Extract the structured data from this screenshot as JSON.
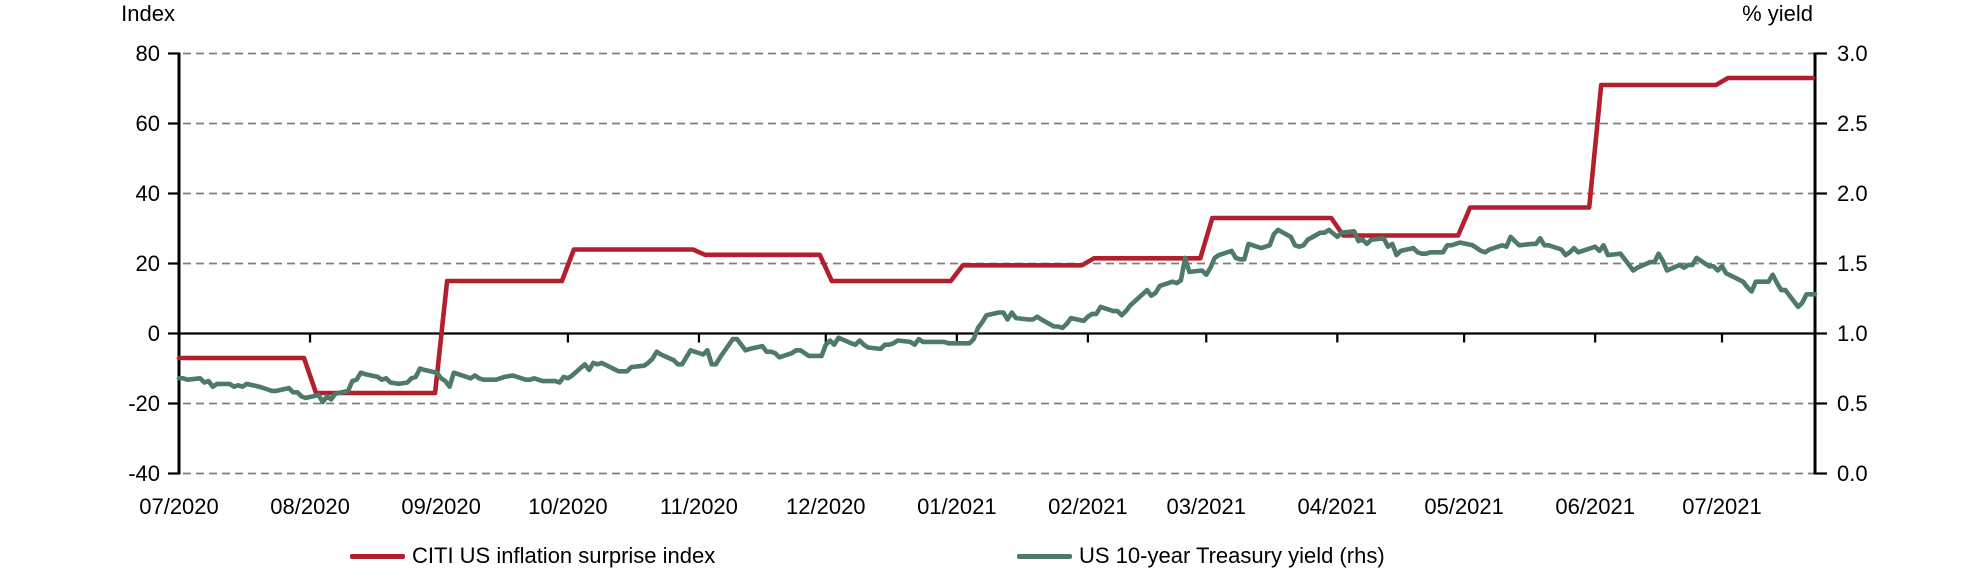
{
  "left_axis": {
    "title": "Index",
    "tick_labels": [
      "80",
      "60",
      "40",
      "20",
      "0",
      "-20",
      "-40"
    ],
    "tick_values": [
      80,
      60,
      40,
      20,
      0,
      -20,
      -40
    ]
  },
  "right_axis": {
    "title": "% yield",
    "tick_labels": [
      "3.0",
      "2.5",
      "2.0",
      "1.5",
      "1.0",
      "0.5",
      "0.0"
    ],
    "tick_values": [
      3.0,
      2.5,
      2.0,
      1.5,
      1.0,
      0.5,
      0.0
    ]
  },
  "x_axis": {
    "labels": [
      "07/2020",
      "08/2020",
      "09/2020",
      "10/2020",
      "11/2020",
      "12/2020",
      "01/2021",
      "02/2021",
      "03/2021",
      "04/2021",
      "05/2021",
      "06/2021",
      "07/2021"
    ],
    "month_day_offsets": [
      0,
      31,
      62,
      92,
      123,
      153,
      184,
      215,
      243,
      274,
      304,
      335,
      365
    ],
    "total_days_shown": 387
  },
  "legend": [
    {
      "label": "CITI US inflation surprise index",
      "color": "#b41f2e"
    },
    {
      "label": "US 10-year Treasury yield (rhs)",
      "color": "#4e7a68"
    }
  ],
  "colors": {
    "citi_red": "#b41f2e",
    "treasury_green": "#4e7a68",
    "gridline_gray": "#7f7f7f",
    "axis_black": "#000000"
  },
  "chart_data": {
    "type": "line",
    "title": "",
    "left_ylabel": "Index",
    "right_ylabel": "% yield",
    "left_ylim": [
      -40,
      80
    ],
    "right_ylim": [
      0.0,
      3.0
    ],
    "grid": "horizontal dashed gridlines, solid line at left-axis 0 (right-axis 1.0)",
    "legend_position": "bottom",
    "series": [
      {
        "name": "CITI US inflation surprise index",
        "axis": "left",
        "color": "#b41f2e",
        "style": "monthly-step",
        "months": [
          "07/2020",
          "08/2020",
          "09/2020",
          "10/2020",
          "11/2020",
          "12/2020",
          "01/2021",
          "02/2021",
          "03/2021",
          "04/2021",
          "05/2021",
          "06/2021",
          "07/2021"
        ],
        "values": [
          -7,
          -17,
          15,
          24,
          22.5,
          15,
          19.5,
          21.5,
          33,
          28,
          36,
          71,
          73
        ]
      },
      {
        "name": "US 10-year Treasury yield (rhs)",
        "axis": "right",
        "color": "#4e7a68",
        "style": "daily-line",
        "points_day_yield": [
          [
            0,
            0.68
          ],
          [
            1,
            0.68
          ],
          [
            2,
            0.67
          ],
          [
            5,
            0.68
          ],
          [
            6,
            0.65
          ],
          [
            7,
            0.66
          ],
          [
            8,
            0.62
          ],
          [
            9,
            0.64
          ],
          [
            12,
            0.64
          ],
          [
            13,
            0.62
          ],
          [
            14,
            0.63
          ],
          [
            15,
            0.62
          ],
          [
            16,
            0.64
          ],
          [
            19,
            0.62
          ],
          [
            20,
            0.61
          ],
          [
            21,
            0.6
          ],
          [
            22,
            0.59
          ],
          [
            23,
            0.59
          ],
          [
            26,
            0.61
          ],
          [
            27,
            0.58
          ],
          [
            28,
            0.58
          ],
          [
            29,
            0.55
          ],
          [
            30,
            0.54
          ],
          [
            33,
            0.56
          ],
          [
            34,
            0.51
          ],
          [
            35,
            0.55
          ],
          [
            36,
            0.53
          ],
          [
            37,
            0.57
          ],
          [
            40,
            0.59
          ],
          [
            41,
            0.66
          ],
          [
            42,
            0.67
          ],
          [
            43,
            0.72
          ],
          [
            44,
            0.71
          ],
          [
            47,
            0.69
          ],
          [
            48,
            0.67
          ],
          [
            49,
            0.68
          ],
          [
            50,
            0.65
          ],
          [
            52,
            0.64
          ],
          [
            54,
            0.65
          ],
          [
            55,
            0.68
          ],
          [
            56,
            0.69
          ],
          [
            57,
            0.75
          ],
          [
            58,
            0.74
          ],
          [
            61,
            0.72
          ],
          [
            62,
            0.68
          ],
          [
            63,
            0.66
          ],
          [
            64,
            0.62
          ],
          [
            65,
            0.72
          ],
          [
            69,
            0.68
          ],
          [
            70,
            0.7
          ],
          [
            71,
            0.68
          ],
          [
            72,
            0.67
          ],
          [
            75,
            0.67
          ],
          [
            76,
            0.68
          ],
          [
            77,
            0.69
          ],
          [
            79,
            0.7
          ],
          [
            82,
            0.67
          ],
          [
            83,
            0.67
          ],
          [
            84,
            0.68
          ],
          [
            85,
            0.67
          ],
          [
            86,
            0.66
          ],
          [
            89,
            0.66
          ],
          [
            90,
            0.65
          ],
          [
            91,
            0.69
          ],
          [
            92,
            0.68
          ],
          [
            93,
            0.7
          ],
          [
            96,
            0.78
          ],
          [
            97,
            0.74
          ],
          [
            98,
            0.79
          ],
          [
            99,
            0.78
          ],
          [
            100,
            0.79
          ],
          [
            104,
            0.73
          ],
          [
            105,
            0.73
          ],
          [
            106,
            0.73
          ],
          [
            107,
            0.76
          ],
          [
            110,
            0.77
          ],
          [
            111,
            0.79
          ],
          [
            112,
            0.82
          ],
          [
            113,
            0.87
          ],
          [
            114,
            0.85
          ],
          [
            117,
            0.81
          ],
          [
            118,
            0.78
          ],
          [
            119,
            0.78
          ],
          [
            120,
            0.83
          ],
          [
            121,
            0.88
          ],
          [
            124,
            0.85
          ],
          [
            125,
            0.88
          ],
          [
            126,
            0.78
          ],
          [
            127,
            0.78
          ],
          [
            128,
            0.83
          ],
          [
            131,
            0.96
          ],
          [
            132,
            0.96
          ],
          [
            134,
            0.88
          ],
          [
            135,
            0.89
          ],
          [
            138,
            0.91
          ],
          [
            139,
            0.87
          ],
          [
            140,
            0.87
          ],
          [
            141,
            0.86
          ],
          [
            142,
            0.83
          ],
          [
            145,
            0.86
          ],
          [
            146,
            0.88
          ],
          [
            147,
            0.88
          ],
          [
            149,
            0.84
          ],
          [
            152,
            0.84
          ],
          [
            153,
            0.92
          ],
          [
            154,
            0.95
          ],
          [
            155,
            0.92
          ],
          [
            156,
            0.97
          ],
          [
            159,
            0.93
          ],
          [
            160,
            0.92
          ],
          [
            161,
            0.95
          ],
          [
            162,
            0.92
          ],
          [
            163,
            0.9
          ],
          [
            166,
            0.89
          ],
          [
            167,
            0.92
          ],
          [
            168,
            0.92
          ],
          [
            169,
            0.93
          ],
          [
            170,
            0.95
          ],
          [
            173,
            0.94
          ],
          [
            174,
            0.92
          ],
          [
            175,
            0.96
          ],
          [
            176,
            0.94
          ],
          [
            180,
            0.94
          ],
          [
            181,
            0.94
          ],
          [
            182,
            0.93
          ],
          [
            184,
            0.93
          ],
          [
            187,
            0.93
          ],
          [
            188,
            0.96
          ],
          [
            189,
            1.04
          ],
          [
            190,
            1.08
          ],
          [
            191,
            1.13
          ],
          [
            194,
            1.15
          ],
          [
            195,
            1.15
          ],
          [
            196,
            1.1
          ],
          [
            197,
            1.15
          ],
          [
            198,
            1.11
          ],
          [
            201,
            1.1
          ],
          [
            202,
            1.1
          ],
          [
            203,
            1.12
          ],
          [
            204,
            1.1
          ],
          [
            207,
            1.05
          ],
          [
            208,
            1.05
          ],
          [
            209,
            1.04
          ],
          [
            210,
            1.07
          ],
          [
            211,
            1.11
          ],
          [
            214,
            1.09
          ],
          [
            215,
            1.12
          ],
          [
            216,
            1.14
          ],
          [
            217,
            1.14
          ],
          [
            218,
            1.19
          ],
          [
            221,
            1.16
          ],
          [
            222,
            1.16
          ],
          [
            223,
            1.13
          ],
          [
            224,
            1.16
          ],
          [
            225,
            1.2
          ],
          [
            229,
            1.31
          ],
          [
            230,
            1.27
          ],
          [
            231,
            1.29
          ],
          [
            232,
            1.34
          ],
          [
            235,
            1.37
          ],
          [
            236,
            1.36
          ],
          [
            237,
            1.38
          ],
          [
            238,
            1.54
          ],
          [
            239,
            1.44
          ],
          [
            242,
            1.45
          ],
          [
            243,
            1.42
          ],
          [
            244,
            1.47
          ],
          [
            245,
            1.54
          ],
          [
            246,
            1.56
          ],
          [
            249,
            1.59
          ],
          [
            250,
            1.54
          ],
          [
            251,
            1.53
          ],
          [
            252,
            1.53
          ],
          [
            253,
            1.64
          ],
          [
            256,
            1.61
          ],
          [
            257,
            1.62
          ],
          [
            258,
            1.63
          ],
          [
            259,
            1.71
          ],
          [
            260,
            1.74
          ],
          [
            263,
            1.69
          ],
          [
            264,
            1.63
          ],
          [
            265,
            1.62
          ],
          [
            266,
            1.63
          ],
          [
            267,
            1.67
          ],
          [
            270,
            1.72
          ],
          [
            271,
            1.72
          ],
          [
            272,
            1.74
          ],
          [
            274,
            1.69
          ],
          [
            275,
            1.72
          ],
          [
            278,
            1.73
          ],
          [
            279,
            1.66
          ],
          [
            280,
            1.67
          ],
          [
            281,
            1.64
          ],
          [
            282,
            1.67
          ],
          [
            285,
            1.68
          ],
          [
            286,
            1.62
          ],
          [
            287,
            1.64
          ],
          [
            288,
            1.56
          ],
          [
            289,
            1.59
          ],
          [
            292,
            1.61
          ],
          [
            293,
            1.58
          ],
          [
            294,
            1.57
          ],
          [
            295,
            1.57
          ],
          [
            296,
            1.58
          ],
          [
            299,
            1.58
          ],
          [
            300,
            1.63
          ],
          [
            301,
            1.63
          ],
          [
            302,
            1.64
          ],
          [
            303,
            1.65
          ],
          [
            306,
            1.63
          ],
          [
            307,
            1.61
          ],
          [
            308,
            1.59
          ],
          [
            309,
            1.58
          ],
          [
            310,
            1.6
          ],
          [
            313,
            1.63
          ],
          [
            314,
            1.62
          ],
          [
            315,
            1.69
          ],
          [
            316,
            1.66
          ],
          [
            317,
            1.63
          ],
          [
            320,
            1.64
          ],
          [
            321,
            1.64
          ],
          [
            322,
            1.68
          ],
          [
            323,
            1.63
          ],
          [
            324,
            1.63
          ],
          [
            327,
            1.6
          ],
          [
            328,
            1.56
          ],
          [
            329,
            1.58
          ],
          [
            330,
            1.61
          ],
          [
            331,
            1.58
          ],
          [
            335,
            1.62
          ],
          [
            336,
            1.59
          ],
          [
            337,
            1.63
          ],
          [
            338,
            1.56
          ],
          [
            341,
            1.57
          ],
          [
            342,
            1.53
          ],
          [
            343,
            1.49
          ],
          [
            344,
            1.45
          ],
          [
            345,
            1.47
          ],
          [
            348,
            1.51
          ],
          [
            349,
            1.51
          ],
          [
            350,
            1.57
          ],
          [
            351,
            1.52
          ],
          [
            352,
            1.45
          ],
          [
            355,
            1.49
          ],
          [
            356,
            1.47
          ],
          [
            357,
            1.49
          ],
          [
            358,
            1.49
          ],
          [
            359,
            1.54
          ],
          [
            362,
            1.48
          ],
          [
            363,
            1.48
          ],
          [
            364,
            1.45
          ],
          [
            365,
            1.48
          ],
          [
            366,
            1.43
          ],
          [
            370,
            1.37
          ],
          [
            371,
            1.33
          ],
          [
            372,
            1.3
          ],
          [
            373,
            1.37
          ],
          [
            376,
            1.37
          ],
          [
            377,
            1.42
          ],
          [
            378,
            1.36
          ],
          [
            379,
            1.31
          ],
          [
            380,
            1.31
          ],
          [
            383,
            1.19
          ],
          [
            384,
            1.22
          ],
          [
            385,
            1.28
          ],
          [
            387,
            1.28
          ]
        ]
      }
    ]
  }
}
